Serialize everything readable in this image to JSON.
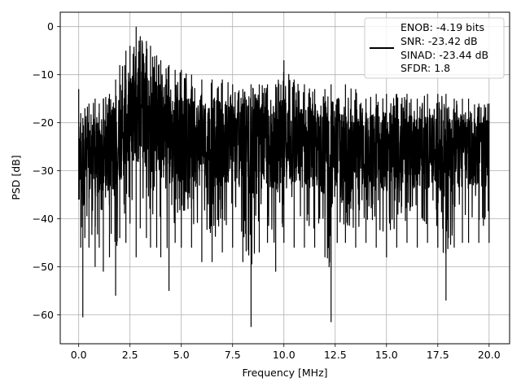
{
  "chart_data": {
    "type": "line",
    "title": "",
    "xlabel": "Frequency [MHz]",
    "ylabel": "PSD [dB]",
    "xlim": [
      -0.9,
      21.0
    ],
    "ylim": [
      -66.0,
      3.0
    ],
    "xticks": [
      0.0,
      2.5,
      5.0,
      7.5,
      10.0,
      12.5,
      15.0,
      17.5,
      20.0
    ],
    "xtick_labels": [
      "0.0",
      "2.5",
      "5.0",
      "7.5",
      "10.0",
      "12.5",
      "15.0",
      "17.5",
      "20.0"
    ],
    "yticks": [
      0,
      -10,
      -20,
      -30,
      -40,
      -50,
      -60
    ],
    "ytick_labels": [
      "0",
      "−10",
      "−20",
      "−30",
      "−40",
      "−50",
      "−60"
    ],
    "grid": true,
    "legend_position": "top-right",
    "legend_entries": [
      "ENOB: -4.19 bits",
      "SNR: -23.42 dB",
      "SINAD: -23.44 dB",
      "SFDR: 1.8"
    ],
    "series": [
      {
        "color": "#000000",
        "x": [
          0.0,
          0.1,
          0.2,
          0.3,
          0.5,
          0.8,
          1.0,
          1.2,
          1.5,
          1.8,
          2.0,
          2.3,
          2.5,
          2.8,
          3.0,
          3.3,
          3.5,
          3.8,
          4.0,
          4.4,
          4.7,
          5.0,
          5.5,
          6.0,
          6.5,
          7.0,
          7.5,
          8.0,
          8.4,
          8.8,
          9.2,
          9.6,
          10.0,
          10.5,
          11.0,
          11.5,
          12.0,
          12.3,
          12.6,
          13.0,
          13.5,
          14.0,
          14.5,
          15.0,
          15.5,
          16.0,
          16.5,
          17.0,
          17.5,
          17.9,
          18.3,
          18.7,
          19.0,
          19.5,
          20.0
        ],
        "upper": [
          -13,
          -18,
          -19,
          -17,
          -16,
          -15,
          -16,
          -15,
          -14,
          -11,
          -8,
          -5,
          -4,
          0,
          -2,
          -3,
          -4,
          -6,
          -7,
          -8,
          -9,
          -9,
          -10,
          -11,
          -11,
          -11,
          -12,
          -13,
          -12,
          -12,
          -12,
          -12,
          -7,
          -11,
          -12,
          -13,
          -13,
          -12,
          -15,
          -12,
          -13,
          -15,
          -14,
          -14,
          -14,
          -14,
          -15,
          -14,
          -14,
          -14,
          -15,
          -15,
          -15,
          -16,
          -16
        ],
        "lower": [
          -36,
          -46,
          -60.5,
          -44,
          -46,
          -50,
          -46,
          -51,
          -48,
          -56,
          -44,
          -45,
          -41,
          -48,
          -42,
          -44,
          -46,
          -46,
          -48,
          -55,
          -45,
          -46,
          -46,
          -49,
          -49,
          -47,
          -46,
          -49,
          -62.5,
          -47,
          -45,
          -51,
          -45,
          -46,
          -46,
          -46,
          -48,
          -61.5,
          -45,
          -45,
          -46,
          -45,
          -46,
          -48,
          -46,
          -45,
          -46,
          -45,
          -46,
          -57,
          -46,
          -45,
          -45,
          -45,
          -45
        ],
        "mean": [
          -27,
          -30,
          -30,
          -29,
          -29,
          -28,
          -29,
          -28,
          -27,
          -26,
          -24,
          -22,
          -21,
          -18,
          -19,
          -20,
          -21,
          -22,
          -23,
          -24,
          -24,
          -24,
          -25,
          -25,
          -25,
          -25,
          -25,
          -26,
          -26,
          -26,
          -26,
          -26,
          -25,
          -26,
          -26,
          -26,
          -27,
          -27,
          -27,
          -27,
          -27,
          -27,
          -27,
          -27,
          -27,
          -27,
          -27,
          -27,
          -27,
          -27,
          -27,
          -27,
          -27,
          -27,
          -27
        ]
      }
    ]
  }
}
